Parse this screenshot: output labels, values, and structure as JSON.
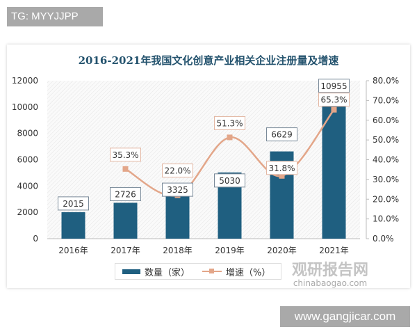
{
  "watermark_top": "TG: MYYJJPP",
  "watermark_bottom": "www.gangjicar.com",
  "logo": {
    "cn": "观研报告网",
    "en": "chinabaogao.com"
  },
  "chart_data": {
    "type": "bar+line",
    "title": "2016-2021年我国文化创意产业相关企业注册量及增速",
    "categories": [
      "2016年",
      "2017年",
      "2018年",
      "2019年",
      "2020年",
      "2021年"
    ],
    "series": [
      {
        "name": "数量（家）",
        "type": "bar",
        "axis": "left",
        "values": [
          2015,
          2726,
          3325,
          5030,
          6629,
          10955
        ],
        "color": "#1f5f80"
      },
      {
        "name": "增速（%）",
        "type": "line",
        "axis": "right",
        "values": [
          null,
          35.3,
          22.0,
          51.3,
          31.8,
          65.3
        ],
        "labels": [
          "",
          "35.3%",
          "22.0%",
          "51.3%",
          "31.8%",
          "65.3%"
        ],
        "color": "#e3a689"
      }
    ],
    "left_axis": {
      "ylim": [
        0,
        12000
      ],
      "ticks": [
        "0",
        "2000",
        "4000",
        "6000",
        "8000",
        "10000",
        "12000"
      ]
    },
    "right_axis": {
      "ylim": [
        0,
        80
      ],
      "ticks": [
        "0.0%",
        "10.0%",
        "20.0%",
        "30.0%",
        "40.0%",
        "50.0%",
        "60.0%",
        "70.0%",
        "80.0%"
      ]
    },
    "legend": "bottom",
    "grid": false
  }
}
